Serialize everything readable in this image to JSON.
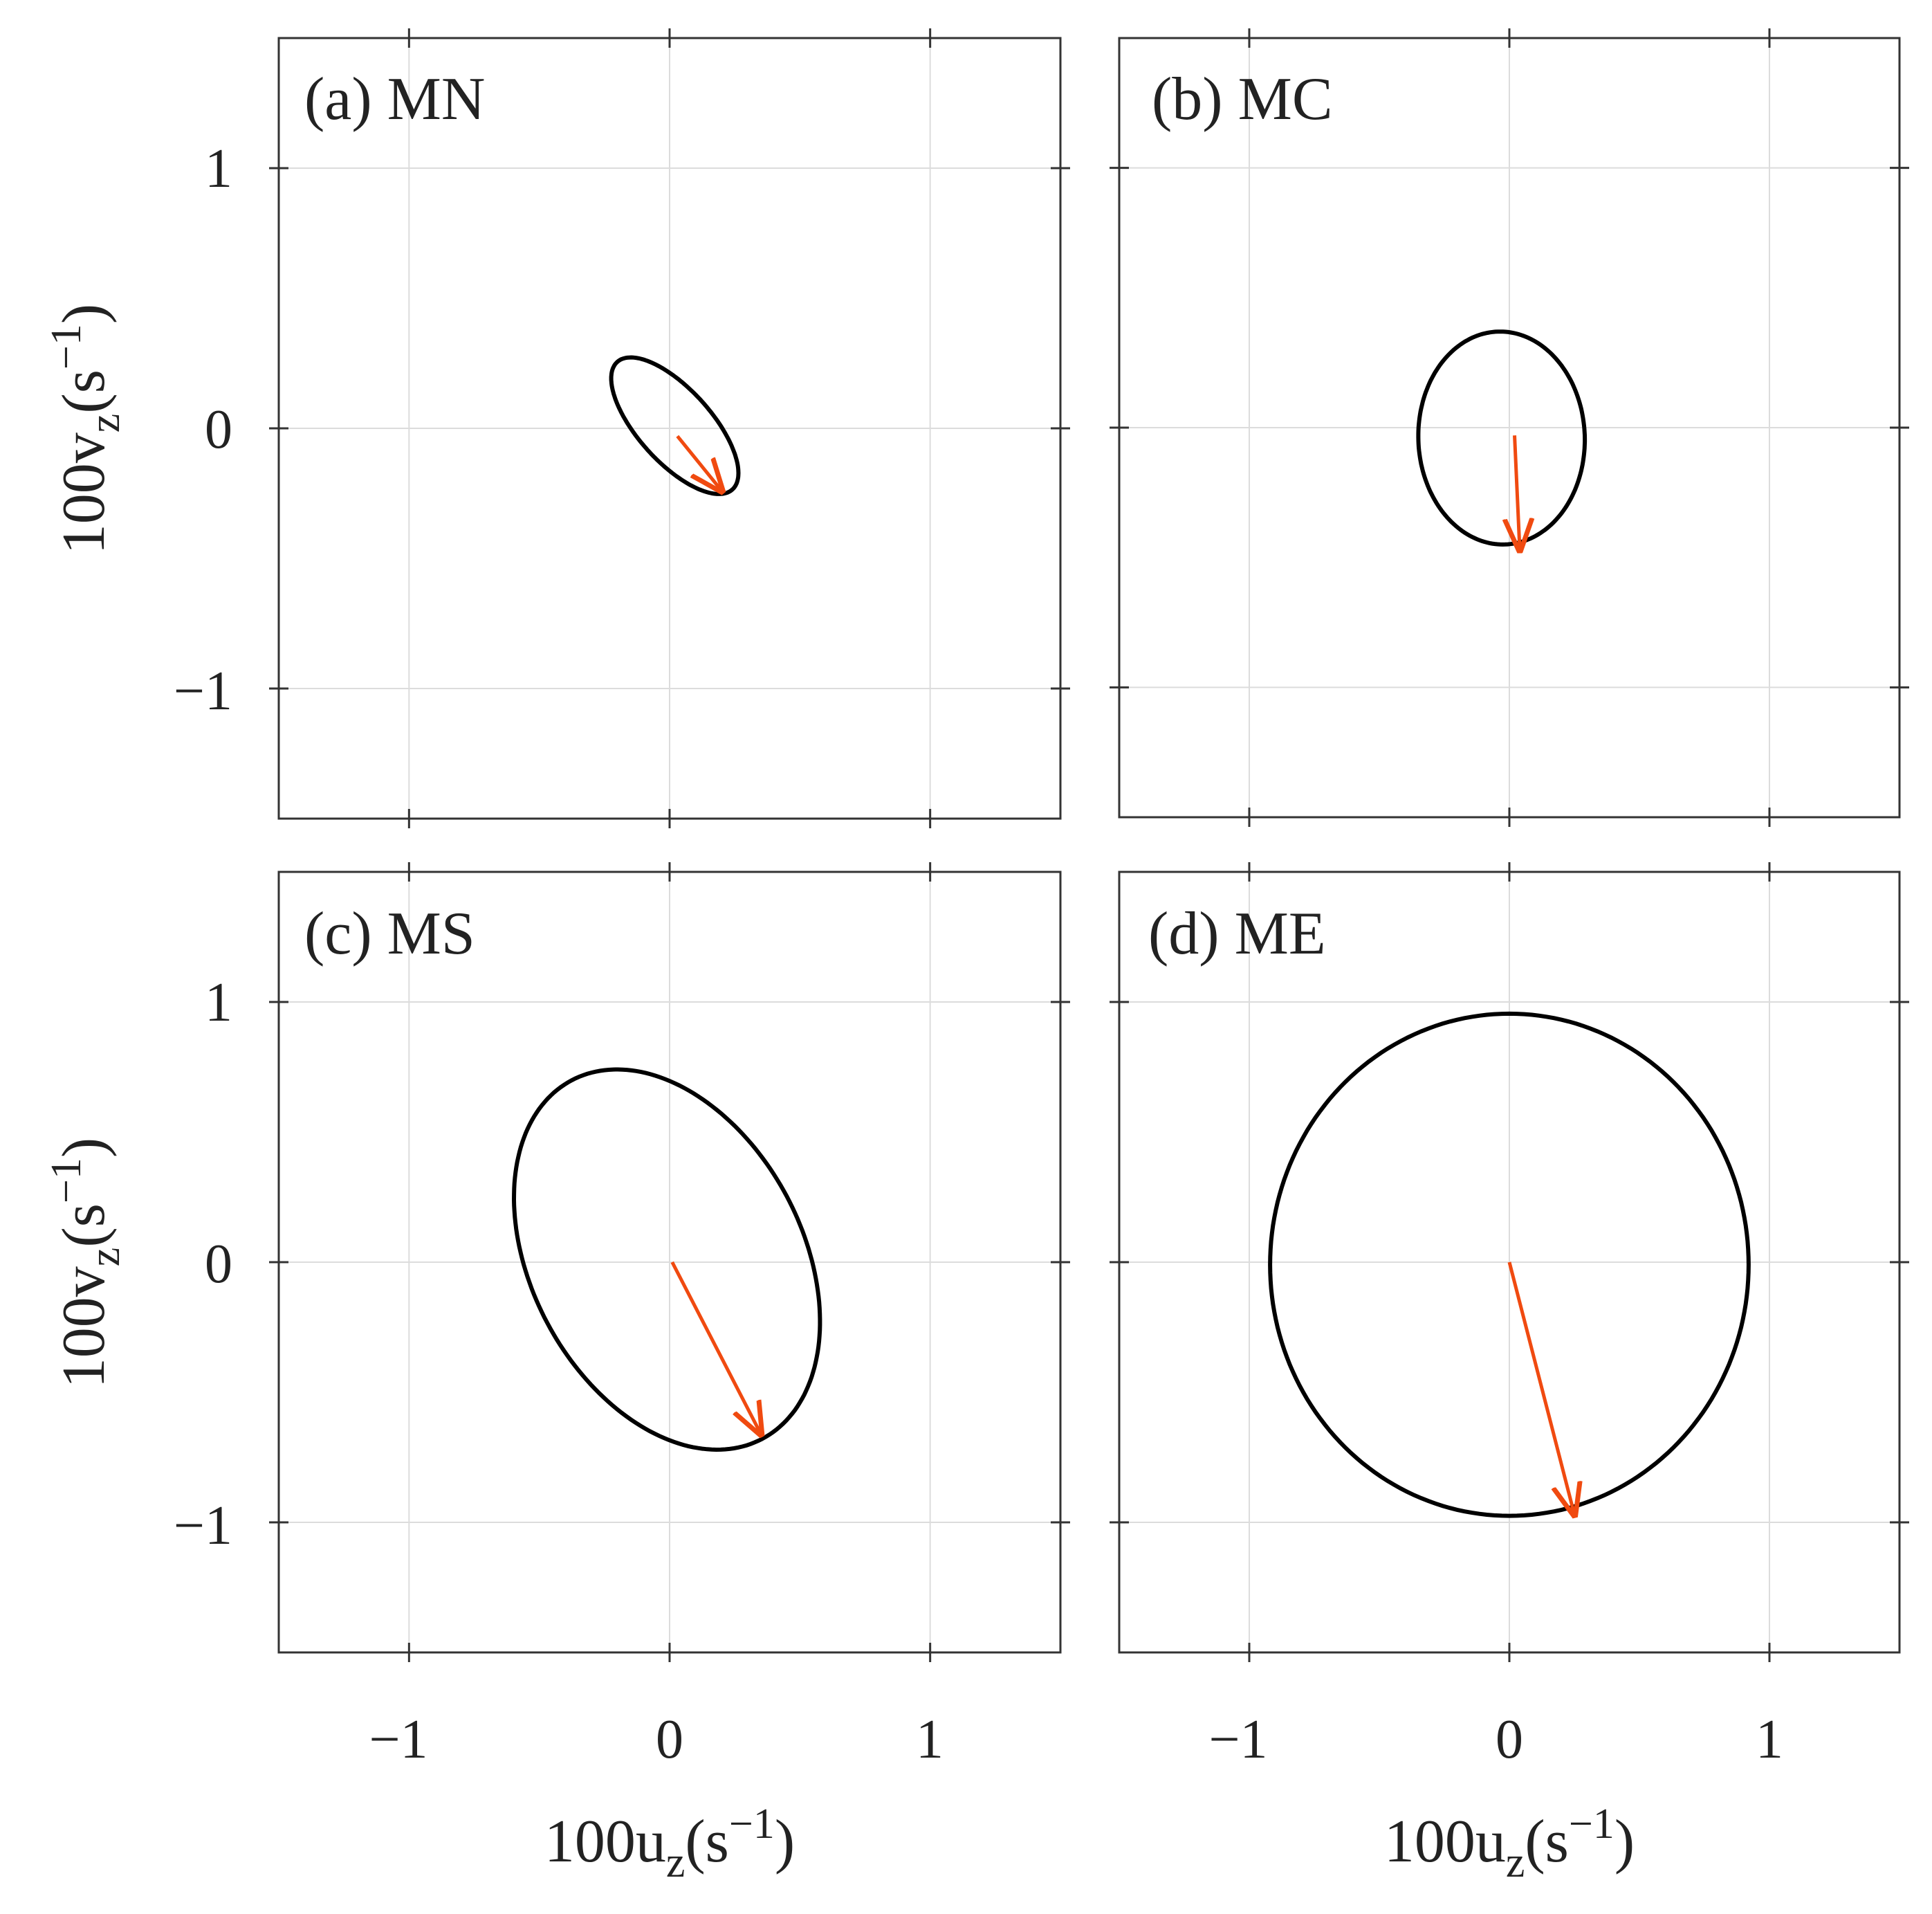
{
  "colors": {
    "ellipse": "#000000",
    "arrow": "#f04a10",
    "grid": "#dcdcdc",
    "frame": "#333333"
  },
  "axis_labels": {
    "ylabel_prefix": "100v",
    "xlabel_prefix": "100u",
    "subscript": "z",
    "unit_open": "(s",
    "unit_exp": "−1",
    "unit_close": ")"
  },
  "chart_data": [
    {
      "type": "line",
      "panel": "a",
      "title": "(a) MN",
      "xlabel": "100u_z(s^-1)",
      "ylabel": "100v_z(s^-1)",
      "xlim": [
        -1.5,
        1.5
      ],
      "ylim": [
        -1.5,
        1.5
      ],
      "xticks": [
        -1,
        0,
        1
      ],
      "xtick_labels": [
        "−1",
        "0",
        "1"
      ],
      "yticks": [
        -1,
        0,
        1
      ],
      "ytick_labels": [
        "−1",
        "0",
        "1"
      ],
      "grid": true,
      "series": [
        {
          "name": "ellipse",
          "center": [
            0.02,
            0.01
          ],
          "semi_major": 0.33,
          "semi_minor": 0.14,
          "tilt_deg": -48
        },
        {
          "name": "arrow",
          "from": [
            0.03,
            -0.03
          ],
          "to": [
            0.2,
            -0.24
          ]
        }
      ]
    },
    {
      "type": "line",
      "panel": "b",
      "title": "(b) MC",
      "xlabel": "100u_z(s^-1)",
      "ylabel": "100v_z(s^-1)",
      "xlim": [
        -1.5,
        1.5
      ],
      "ylim": [
        -1.5,
        1.5
      ],
      "xticks": [
        -1,
        0,
        1
      ],
      "xtick_labels": [
        "−1",
        "0",
        "1"
      ],
      "yticks": [
        -1,
        0,
        1
      ],
      "ytick_labels": [
        "−1",
        "0",
        "1"
      ],
      "grid": true,
      "series": [
        {
          "name": "ellipse",
          "center": [
            -0.03,
            -0.04
          ],
          "semi_major": 0.41,
          "semi_minor": 0.32,
          "tilt_deg": 92
        },
        {
          "name": "arrow",
          "from": [
            0.02,
            -0.03
          ],
          "to": [
            0.04,
            -0.47
          ]
        }
      ]
    },
    {
      "type": "line",
      "panel": "c",
      "title": "(c) MS",
      "xlabel": "100u_z(s^-1)",
      "ylabel": "100v_z(s^-1)",
      "xlim": [
        -1.5,
        1.5
      ],
      "ylim": [
        -1.5,
        1.5
      ],
      "xticks": [
        -1,
        0,
        1
      ],
      "xtick_labels": [
        "−1",
        "0",
        "1"
      ],
      "yticks": [
        -1,
        0,
        1
      ],
      "ytick_labels": [
        "−1",
        "0",
        "1"
      ],
      "grid": true,
      "series": [
        {
          "name": "ellipse",
          "center": [
            -0.01,
            0.01
          ],
          "semi_major": 0.78,
          "semi_minor": 0.52,
          "tilt_deg": -62
        },
        {
          "name": "arrow",
          "from": [
            0.01,
            0.0
          ],
          "to": [
            0.35,
            -0.66
          ]
        }
      ]
    },
    {
      "type": "line",
      "panel": "d",
      "title": "(d) ME",
      "xlabel": "100u_z(s^-1)",
      "ylabel": "100v_z(s^-1)",
      "xlim": [
        -1.5,
        1.5
      ],
      "ylim": [
        -1.5,
        1.5
      ],
      "xticks": [
        -1,
        0,
        1
      ],
      "xtick_labels": [
        "−1",
        "0",
        "1"
      ],
      "yticks": [
        -1,
        0,
        1
      ],
      "ytick_labels": [
        "−1",
        "0",
        "1"
      ],
      "grid": true,
      "series": [
        {
          "name": "ellipse",
          "center": [
            0.0,
            -0.01
          ],
          "semi_major": 0.965,
          "semi_minor": 0.92,
          "tilt_deg": 90
        },
        {
          "name": "arrow",
          "from": [
            0.0,
            0.0
          ],
          "to": [
            0.25,
            -0.97
          ]
        }
      ]
    }
  ]
}
